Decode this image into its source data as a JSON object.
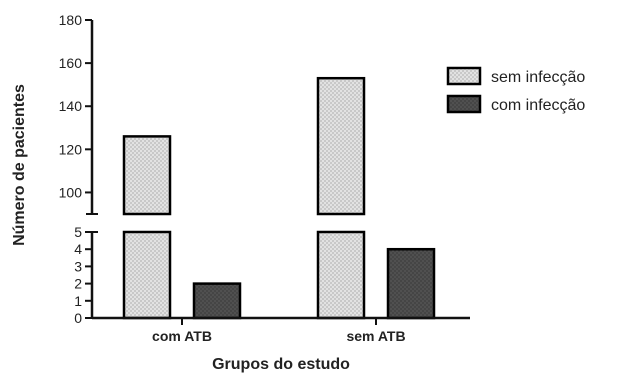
{
  "chart_data": {
    "type": "bar",
    "categories": [
      "com ATB",
      "sem ATB"
    ],
    "series": [
      {
        "name": "sem infecção",
        "values": [
          126,
          153
        ],
        "color": "#d9d9d9",
        "pattern": "dotted-light"
      },
      {
        "name": "com infecção",
        "values": [
          2,
          4
        ],
        "color": "#4a4a4a",
        "pattern": "dotted-dark"
      }
    ],
    "xlabel": "Grupos do estudo",
    "ylabel": "Número de pacientes",
    "broken_axis": true,
    "y_segments": [
      {
        "range": [
          0,
          5
        ],
        "ticks": [
          "0",
          "1",
          "2",
          "3",
          "4",
          "5"
        ]
      },
      {
        "range": [
          90,
          180
        ],
        "ticks": [
          "100",
          "120",
          "140",
          "160",
          "180"
        ]
      }
    ],
    "legend_position": "right"
  }
}
